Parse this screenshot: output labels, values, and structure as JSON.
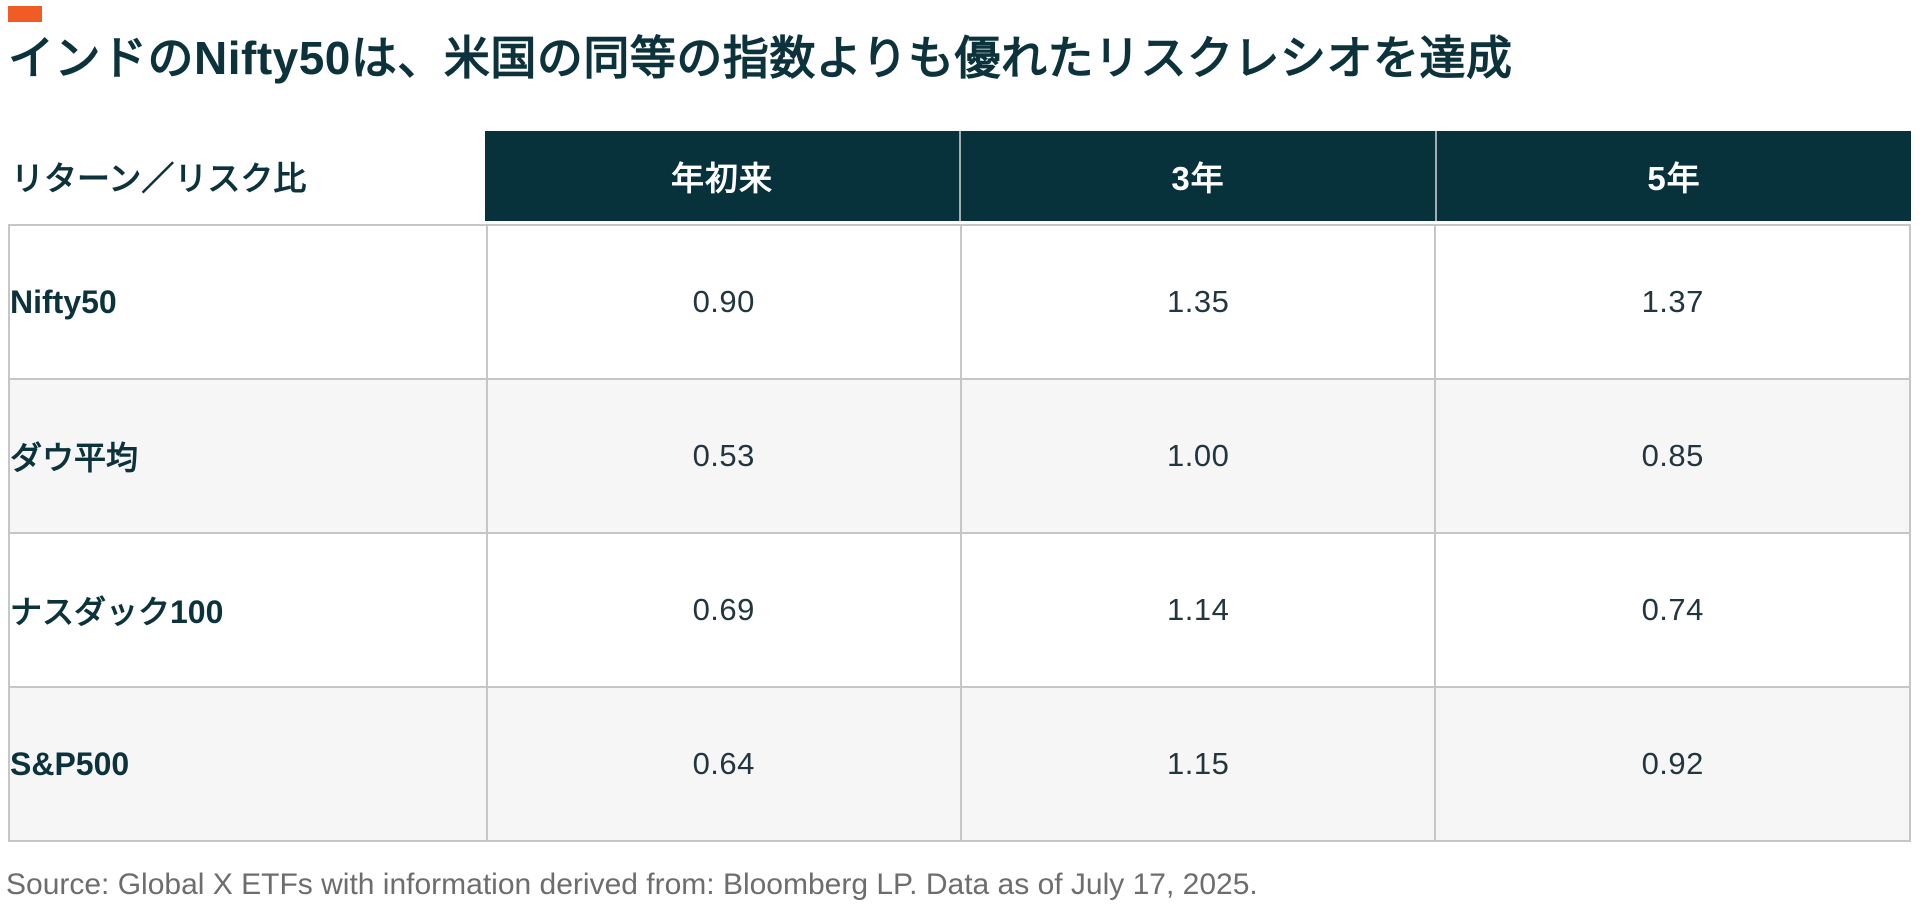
{
  "page": {
    "title": "インドのNifty50は、米国の同等の指数よりも優れたリスクレシオを達成",
    "source_note": "Source: Global X ETFs with information derived from: Bloomberg LP. Data as of July 17, 2025."
  },
  "colors": {
    "accent_orange": "#f15b26",
    "header_teal": "#07313b",
    "header_text": "#ffffff",
    "title_text": "#0c323c",
    "value_text": "#223640",
    "row_alt_bg": "#f6f6f7",
    "border_gray": "#c6c6c6",
    "source_gray": "#6d6d6d"
  },
  "chart_data": {
    "type": "table",
    "title": "インドのNifty50は、米国の同等の指数よりも優れたリスクレシオを達成",
    "corner_header": "リターン／リスク比",
    "column_headers": [
      "年初来",
      "3年",
      "5年"
    ],
    "rows": [
      {
        "label": "Nifty50",
        "values": [
          "0.90",
          "1.35",
          "1.37"
        ]
      },
      {
        "label": "ダウ平均",
        "values": [
          "0.53",
          "1.00",
          "0.85"
        ]
      },
      {
        "label": "ナスダック100",
        "values": [
          "0.69",
          "1.14",
          "0.74"
        ]
      },
      {
        "label": "S&P500",
        "values": [
          "0.64",
          "1.15",
          "0.92"
        ]
      }
    ],
    "source": "Source: Global X ETFs with information derived from: Bloomberg LP. Data as of July 17, 2025.",
    "layout_hints": {
      "row_striping": [
        "white",
        "light-gray",
        "white",
        "light-gray"
      ],
      "header_style": "dark-teal background, white bold text, centered",
      "label_column_alignment": "left",
      "value_alignment": "center"
    }
  }
}
